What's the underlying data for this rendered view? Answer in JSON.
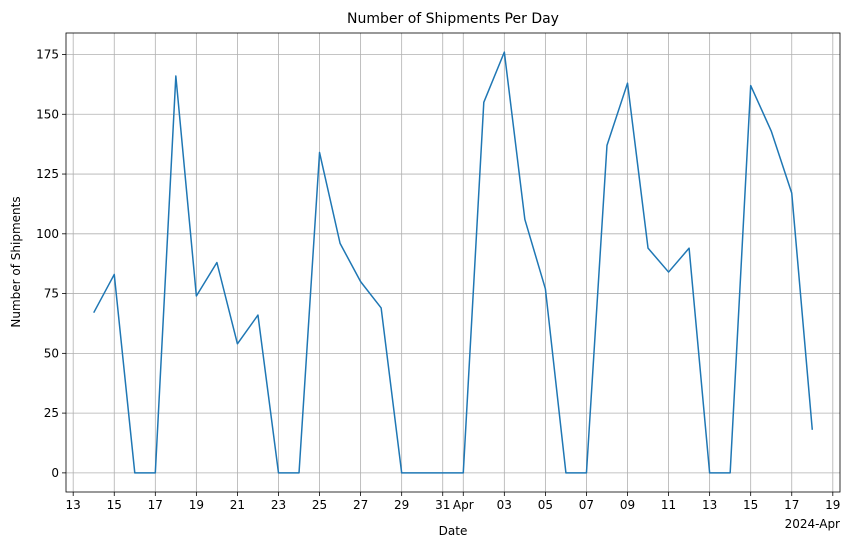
{
  "chart_data": {
    "type": "line",
    "title": "Number of Shipments Per Day",
    "xlabel": "Date",
    "ylabel": "Number of Shipments",
    "x_offset_label": "2024-Apr",
    "grid": true,
    "ylim": [
      -8,
      184
    ],
    "xlim": [
      "2024-03-12.65",
      "2024-04-19.35"
    ],
    "yticks": [
      0,
      25,
      50,
      75,
      100,
      125,
      150,
      175
    ],
    "xticks": [
      {
        "date": "2024-03-13",
        "label": "13"
      },
      {
        "date": "2024-03-15",
        "label": "15"
      },
      {
        "date": "2024-03-17",
        "label": "17"
      },
      {
        "date": "2024-03-19",
        "label": "19"
      },
      {
        "date": "2024-03-21",
        "label": "21"
      },
      {
        "date": "2024-03-23",
        "label": "23"
      },
      {
        "date": "2024-03-25",
        "label": "25"
      },
      {
        "date": "2024-03-27",
        "label": "27"
      },
      {
        "date": "2024-03-29",
        "label": "29"
      },
      {
        "date": "2024-03-31",
        "label": "31"
      },
      {
        "date": "2024-04-01",
        "label": "Apr"
      },
      {
        "date": "2024-04-03",
        "label": "03"
      },
      {
        "date": "2024-04-05",
        "label": "05"
      },
      {
        "date": "2024-04-07",
        "label": "07"
      },
      {
        "date": "2024-04-09",
        "label": "09"
      },
      {
        "date": "2024-04-11",
        "label": "11"
      },
      {
        "date": "2024-04-13",
        "label": "13"
      },
      {
        "date": "2024-04-15",
        "label": "15"
      },
      {
        "date": "2024-04-17",
        "label": "17"
      },
      {
        "date": "2024-04-19",
        "label": "19"
      }
    ],
    "series": [
      {
        "color": "#1f77b4",
        "x": [
          "2024-03-14",
          "2024-03-15",
          "2024-03-16",
          "2024-03-17",
          "2024-03-18",
          "2024-03-19",
          "2024-03-20",
          "2024-03-21",
          "2024-03-22",
          "2024-03-23",
          "2024-03-24",
          "2024-03-25",
          "2024-03-26",
          "2024-03-27",
          "2024-03-28",
          "2024-03-29",
          "2024-03-30",
          "2024-03-31",
          "2024-04-01",
          "2024-04-02",
          "2024-04-03",
          "2024-04-04",
          "2024-04-05",
          "2024-04-06",
          "2024-04-07",
          "2024-04-08",
          "2024-04-09",
          "2024-04-10",
          "2024-04-11",
          "2024-04-12",
          "2024-04-13",
          "2024-04-14",
          "2024-04-15",
          "2024-04-16",
          "2024-04-17",
          "2024-04-18"
        ],
        "values": [
          67,
          83,
          0,
          0,
          166,
          74,
          88,
          54,
          66,
          0,
          0,
          134,
          96,
          80,
          69,
          0,
          0,
          0,
          0,
          155,
          176,
          106,
          77,
          0,
          0,
          137,
          163,
          94,
          84,
          94,
          0,
          0,
          162,
          143,
          117,
          18
        ]
      }
    ]
  }
}
